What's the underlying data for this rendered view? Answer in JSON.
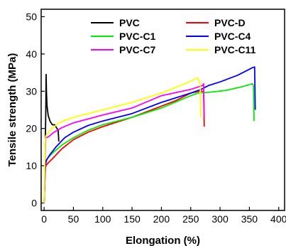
{
  "chart_data": {
    "type": "line",
    "xlabel": "Elongation (%)",
    "ylabel": "Tensile strength (MPa)",
    "xlim": [
      -5,
      410
    ],
    "ylim": [
      -2,
      52
    ],
    "xticks": [
      0,
      50,
      100,
      150,
      200,
      250,
      300,
      350,
      400
    ],
    "yticks": [
      0,
      10,
      20,
      30,
      40,
      50
    ],
    "legend_placement": "top",
    "series": [
      {
        "name": "PVC",
        "color": "#000000",
        "points": [
          [
            0,
            0
          ],
          [
            1,
            5
          ],
          [
            2,
            15
          ],
          [
            3,
            26
          ],
          [
            3.5,
            34.5
          ],
          [
            4,
            30
          ],
          [
            5,
            26
          ],
          [
            7,
            23.5
          ],
          [
            10,
            22
          ],
          [
            14,
            21
          ],
          [
            18,
            21
          ],
          [
            22,
            20
          ],
          [
            24,
            19.5
          ],
          [
            25,
            16.5
          ]
        ]
      },
      {
        "name": "PVC-D",
        "color": "#ff0000",
        "points": [
          [
            0,
            0
          ],
          [
            1,
            5
          ],
          [
            2,
            9
          ],
          [
            3,
            10
          ],
          [
            6,
            10.6
          ],
          [
            15,
            12
          ],
          [
            30,
            14.5
          ],
          [
            50,
            17
          ],
          [
            75,
            19
          ],
          [
            100,
            20.5
          ],
          [
            150,
            23
          ],
          [
            200,
            26
          ],
          [
            225,
            27.5
          ],
          [
            250,
            29.5
          ],
          [
            265,
            30
          ],
          [
            272,
            30
          ],
          [
            273,
            20.5
          ]
        ]
      },
      {
        "name": "PVC-C1",
        "color": "#00ee00",
        "points": [
          [
            0,
            0
          ],
          [
            1,
            5
          ],
          [
            2,
            10
          ],
          [
            3,
            11
          ],
          [
            6,
            12
          ],
          [
            15,
            13.5
          ],
          [
            30,
            15.5
          ],
          [
            50,
            17.5
          ],
          [
            75,
            19.5
          ],
          [
            100,
            21
          ],
          [
            150,
            23
          ],
          [
            200,
            25.5
          ],
          [
            250,
            28.8
          ],
          [
            262,
            29.5
          ],
          [
            280,
            29.7
          ],
          [
            310,
            30.2
          ],
          [
            340,
            31.3
          ],
          [
            355,
            32
          ],
          [
            357,
            31.5
          ],
          [
            358,
            22
          ]
        ]
      },
      {
        "name": "PVC-C4",
        "color": "#0000ff",
        "points": [
          [
            0,
            0
          ],
          [
            1,
            5
          ],
          [
            2,
            10
          ],
          [
            4,
            11.5
          ],
          [
            10,
            13
          ],
          [
            20,
            15
          ],
          [
            35,
            17.5
          ],
          [
            50,
            19
          ],
          [
            75,
            20.8
          ],
          [
            100,
            22
          ],
          [
            150,
            24
          ],
          [
            200,
            27
          ],
          [
            250,
            29.5
          ],
          [
            268,
            30.5
          ],
          [
            280,
            31.5
          ],
          [
            300,
            32.5
          ],
          [
            330,
            34.3
          ],
          [
            355,
            36.3
          ],
          [
            359,
            36.5
          ],
          [
            360,
            25
          ]
        ]
      },
      {
        "name": "PVC-C7",
        "color": "#ff00ff",
        "points": [
          [
            0,
            0
          ],
          [
            1,
            5
          ],
          [
            2,
            16
          ],
          [
            3,
            17.5
          ],
          [
            8,
            17.8
          ],
          [
            15,
            18.8
          ],
          [
            30,
            20.2
          ],
          [
            50,
            21.5
          ],
          [
            100,
            23.6
          ],
          [
            150,
            25.5
          ],
          [
            200,
            28.8
          ],
          [
            250,
            30.5
          ],
          [
            270,
            31.5
          ],
          [
            272,
            32
          ],
          [
            273,
            23
          ]
        ]
      },
      {
        "name": "PVC-C11",
        "color": "#ffff00",
        "points": [
          [
            0,
            0
          ],
          [
            1,
            10
          ],
          [
            2,
            17
          ],
          [
            3,
            18
          ],
          [
            10,
            19.5
          ],
          [
            25,
            21.5
          ],
          [
            50,
            23
          ],
          [
            100,
            25
          ],
          [
            150,
            27
          ],
          [
            200,
            29.5
          ],
          [
            240,
            32
          ],
          [
            262,
            33.6
          ],
          [
            266,
            32
          ],
          [
            267,
            23
          ]
        ]
      }
    ]
  }
}
